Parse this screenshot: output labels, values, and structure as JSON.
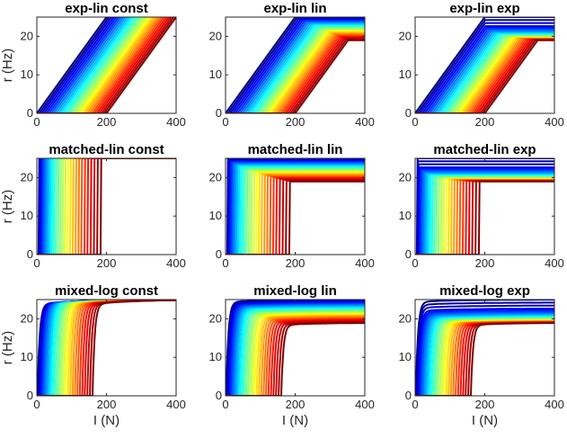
{
  "chart_data": {
    "type": "line",
    "colormap": "jet",
    "series_per_panel": 30,
    "panels": [
      {
        "title": "exp-lin const",
        "family": "exp-lin",
        "variant": "const",
        "xlim": [
          0,
          400
        ],
        "ylim": [
          0,
          25
        ],
        "xticks": [
          "0",
          "200",
          "400"
        ],
        "yticks": [
          "0",
          "10",
          "20"
        ],
        "ylabel": "r (Hz)",
        "xlabel": ""
      },
      {
        "title": "exp-lin lin",
        "family": "exp-lin",
        "variant": "lin",
        "xlim": [
          0,
          400
        ],
        "ylim": [
          0,
          25
        ],
        "xticks": [
          "0",
          "200",
          "400"
        ],
        "yticks": [
          "0",
          "10",
          "20"
        ],
        "ylabel": "",
        "xlabel": ""
      },
      {
        "title": "exp-lin exp",
        "family": "exp-lin",
        "variant": "exp",
        "xlim": [
          0,
          400
        ],
        "ylim": [
          0,
          25
        ],
        "xticks": [
          "0",
          "200",
          "400"
        ],
        "yticks": [
          "0",
          "10",
          "20"
        ],
        "ylabel": "",
        "xlabel": ""
      },
      {
        "title": "matched-lin const",
        "family": "matched-lin",
        "variant": "const",
        "xlim": [
          0,
          400
        ],
        "ylim": [
          0,
          25
        ],
        "xticks": [
          "0",
          "200",
          "400"
        ],
        "yticks": [
          "0",
          "10",
          "20"
        ],
        "ylabel": "r (Hz)",
        "xlabel": ""
      },
      {
        "title": "matched-lin lin",
        "family": "matched-lin",
        "variant": "lin",
        "xlim": [
          0,
          400
        ],
        "ylim": [
          0,
          25
        ],
        "xticks": [
          "0",
          "200",
          "400"
        ],
        "yticks": [
          "0",
          "10",
          "20"
        ],
        "ylabel": "",
        "xlabel": ""
      },
      {
        "title": "matched-lin exp",
        "family": "matched-lin",
        "variant": "exp",
        "xlim": [
          0,
          400
        ],
        "ylim": [
          0,
          25
        ],
        "xticks": [
          "0",
          "200",
          "400"
        ],
        "yticks": [
          "0",
          "10",
          "20"
        ],
        "ylabel": "",
        "xlabel": ""
      },
      {
        "title": "mixed-log const",
        "family": "mixed-log",
        "variant": "const",
        "xlim": [
          0,
          400
        ],
        "ylim": [
          0,
          25
        ],
        "xticks": [
          "0",
          "200",
          "400"
        ],
        "yticks": [
          "0",
          "10",
          "20"
        ],
        "ylabel": "r (Hz)",
        "xlabel": "I (N)"
      },
      {
        "title": "mixed-log lin",
        "family": "mixed-log",
        "variant": "lin",
        "xlim": [
          0,
          400
        ],
        "ylim": [
          0,
          25
        ],
        "xticks": [
          "0",
          "200",
          "400"
        ],
        "yticks": [
          "0",
          "10",
          "20"
        ],
        "ylabel": "",
        "xlabel": "I (N)"
      },
      {
        "title": "mixed-log exp",
        "family": "mixed-log",
        "variant": "exp",
        "xlim": [
          0,
          400
        ],
        "ylim": [
          0,
          25
        ],
        "xticks": [
          "0",
          "200",
          "400"
        ],
        "yticks": [
          "0",
          "10",
          "20"
        ],
        "ylabel": "",
        "xlabel": "I (N)"
      }
    ],
    "model": {
      "threshold_range": [
        0,
        200
      ],
      "rise_slope_hz_per_unit": 0.125,
      "const_saturation": 25,
      "lin_saturation_range": [
        25,
        19
      ],
      "exp_saturation_levels": [
        25,
        22.5,
        21.5,
        20.7,
        20.2,
        19.8,
        19.5,
        19.3,
        19.1,
        19.0
      ]
    }
  }
}
